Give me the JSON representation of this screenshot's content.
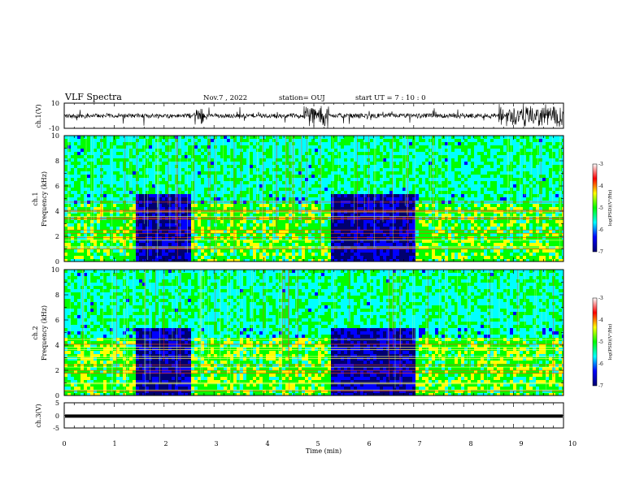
{
  "header": {
    "title": "VLF Spectra",
    "date": "Nov.7 , 2022",
    "station": "station= OUJ",
    "start": "start UT = 7 : 10 : 0"
  },
  "chart_data": [
    {
      "id": "waveform-ch1",
      "type": "line",
      "ylabel": "ch.1(V)",
      "ylim": [
        -10,
        10
      ],
      "yticks": [
        "10",
        "-10"
      ],
      "xlim": [
        0,
        10
      ]
    },
    {
      "id": "spectrogram-ch1",
      "type": "heatmap",
      "ylabel": "Frequency (kHz)",
      "channel_label": "ch.1",
      "ylim": [
        0,
        10
      ],
      "yticks": [
        "0",
        "2",
        "4",
        "6",
        "8",
        "10"
      ],
      "xlim": [
        0,
        10
      ],
      "colorbar": {
        "label": "log(PSD)(V²/Hz)",
        "range": [
          -7,
          -3
        ],
        "ticks": [
          "-3",
          "-4",
          "-5",
          "-6",
          "-7"
        ]
      }
    },
    {
      "id": "spectrogram-ch2",
      "type": "heatmap",
      "ylabel": "Frequency (kHz)",
      "channel_label": "ch.2",
      "ylim": [
        0,
        10
      ],
      "yticks": [
        "0",
        "2",
        "4",
        "6",
        "8",
        "10"
      ],
      "xlim": [
        0,
        10
      ],
      "colorbar": {
        "label": "log(PSD)(V²/Hz)",
        "range": [
          -7,
          -3
        ],
        "ticks": [
          "-3",
          "-4",
          "-5",
          "-6",
          "-7"
        ]
      }
    },
    {
      "id": "waveform-ch3",
      "type": "line",
      "ylabel": "ch.3(V)",
      "ylim": [
        -5,
        5
      ],
      "yticks": [
        "5",
        "0",
        "-5"
      ],
      "xlim": [
        0,
        10
      ],
      "value": -0.3,
      "xlabel": "Time (min)",
      "xticks": [
        "0",
        "1",
        "2",
        "3",
        "4",
        "5",
        "6",
        "7",
        "8",
        "9",
        "10"
      ]
    }
  ],
  "colors": {
    "axis": "#000000",
    "background": "#ffffff",
    "colormap": [
      "#000070",
      "#0000ff",
      "#00ffff",
      "#00ff00",
      "#ffff00",
      "#ff0000",
      "#ffffff"
    ]
  }
}
